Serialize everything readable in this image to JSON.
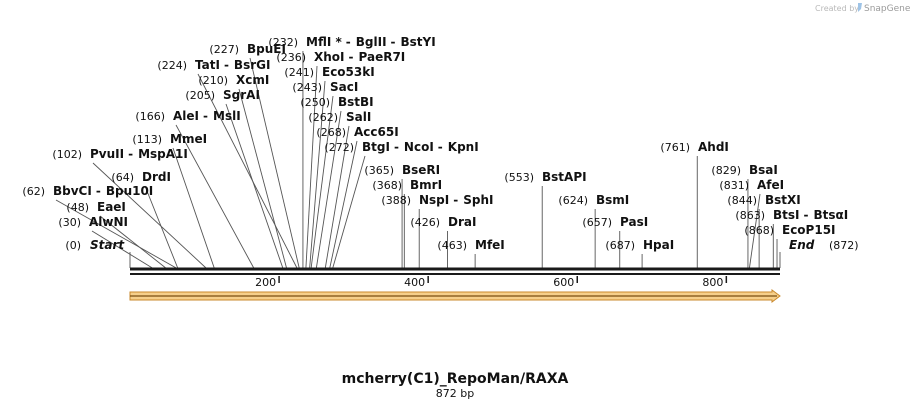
{
  "credit": {
    "prefix": "Created by",
    "brand": "SnapGene"
  },
  "map": {
    "name": "mcherry(C1)_RepoMan/RAXA",
    "length_label": "872 bp",
    "length": 872,
    "ticks": [
      {
        "value": 200,
        "label": "200"
      },
      {
        "value": 400,
        "label": "400"
      },
      {
        "value": 600,
        "label": "600"
      },
      {
        "value": 800,
        "label": "800"
      }
    ],
    "feature": {
      "start": 0,
      "end": 872,
      "fill": "#f6cf8a",
      "stroke": "#c9892c"
    }
  },
  "sites": [
    {
      "names": [
        "AlwNI"
      ],
      "pos": 30,
      "pos_label": "(30)"
    },
    {
      "names": [
        "EaeI"
      ],
      "pos": 48,
      "pos_label": "(48)"
    },
    {
      "names": [
        "BbvCI",
        "Bpu10I"
      ],
      "pos": 62,
      "pos_label": "(62)"
    },
    {
      "names": [
        "DrdI"
      ],
      "pos": 64,
      "pos_label": "(64)"
    },
    {
      "names": [
        "PvuII",
        "MspA1I"
      ],
      "pos": 102,
      "pos_label": "(102)"
    },
    {
      "names": [
        "MmeI"
      ],
      "pos": 113,
      "pos_label": "(113)"
    },
    {
      "names": [
        "AleI",
        "MslI"
      ],
      "pos": 166,
      "pos_label": "(166)"
    },
    {
      "names": [
        "SgrAI"
      ],
      "pos": 205,
      "pos_label": "(205)"
    },
    {
      "names": [
        "XcmI"
      ],
      "pos": 210,
      "pos_label": "(210)"
    },
    {
      "names": [
        "TatI",
        "BsrGI"
      ],
      "pos": 224,
      "pos_label": "(224)"
    },
    {
      "names": [
        "BpuEI"
      ],
      "pos": 227,
      "pos_label": "(227)"
    },
    {
      "names": [
        "MflI *",
        "BglII",
        "BstYI"
      ],
      "pos": 232,
      "pos_label": "(232)"
    },
    {
      "names": [
        "XhoI",
        "PaeR7I"
      ],
      "pos": 236,
      "pos_label": "(236)"
    },
    {
      "names": [
        "Eco53kI"
      ],
      "pos": 241,
      "pos_label": "(241)"
    },
    {
      "names": [
        "SacI"
      ],
      "pos": 243,
      "pos_label": "(243)"
    },
    {
      "names": [
        "BstBI"
      ],
      "pos": 250,
      "pos_label": "(250)"
    },
    {
      "names": [
        "SalI"
      ],
      "pos": 262,
      "pos_label": "(262)"
    },
    {
      "names": [
        "Acc65I"
      ],
      "pos": 268,
      "pos_label": "(268)"
    },
    {
      "names": [
        "BtgI",
        "NcoI",
        "KpnI"
      ],
      "pos": 272,
      "pos_label": "(272)"
    },
    {
      "names": [
        "BseRI"
      ],
      "pos": 365,
      "pos_label": "(365)"
    },
    {
      "names": [
        "BmrI"
      ],
      "pos": 368,
      "pos_label": "(368)"
    },
    {
      "names": [
        "NspI",
        "SphI"
      ],
      "pos": 388,
      "pos_label": "(388)"
    },
    {
      "names": [
        "DraI"
      ],
      "pos": 426,
      "pos_label": "(426)"
    },
    {
      "names": [
        "MfeI"
      ],
      "pos": 463,
      "pos_label": "(463)"
    },
    {
      "names": [
        "BstAPI"
      ],
      "pos": 553,
      "pos_label": "(553)"
    },
    {
      "names": [
        "BsmI"
      ],
      "pos": 624,
      "pos_label": "(624)"
    },
    {
      "names": [
        "PasI"
      ],
      "pos": 657,
      "pos_label": "(657)"
    },
    {
      "names": [
        "HpaI"
      ],
      "pos": 687,
      "pos_label": "(687)"
    },
    {
      "names": [
        "AhdI"
      ],
      "pos": 761,
      "pos_label": "(761)"
    },
    {
      "names": [
        "BsaI"
      ],
      "pos": 829,
      "pos_label": "(829)"
    },
    {
      "names": [
        "AfeI"
      ],
      "pos": 831,
      "pos_label": "(831)"
    },
    {
      "names": [
        "BstXI"
      ],
      "pos": 844,
      "pos_label": "(844)"
    },
    {
      "names": [
        "BtsI",
        "BtsαI"
      ],
      "pos": 863,
      "pos_label": "(863)"
    },
    {
      "names": [
        "EcoP15I"
      ],
      "pos": 868,
      "pos_label": "(868)"
    }
  ],
  "ends": [
    {
      "name": "Start",
      "pos": 0,
      "pos_label": "(0)"
    },
    {
      "name": "End",
      "pos": 872,
      "pos_label": "(872)"
    }
  ]
}
